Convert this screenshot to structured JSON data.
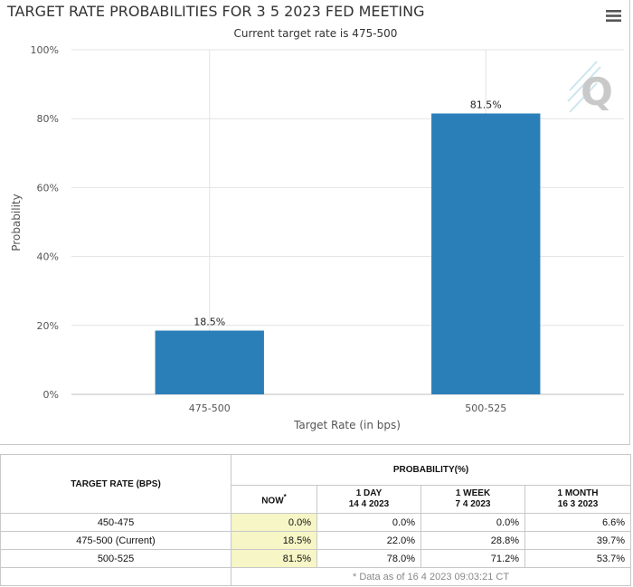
{
  "chart_data": {
    "type": "bar",
    "title": "TARGET RATE PROBABILITIES FOR 3 5 2023 FED MEETING",
    "subtitle": "Current target rate is 475-500",
    "categories": [
      "475-500",
      "500-525"
    ],
    "values": [
      18.5,
      81.5
    ],
    "data_labels": [
      "18.5%",
      "81.5%"
    ],
    "xlabel": "Target Rate (in bps)",
    "ylabel": "Probability",
    "ylim": [
      0,
      100
    ],
    "y_ticks": [
      0,
      20,
      40,
      60,
      80,
      100
    ],
    "y_tick_labels": [
      "0%",
      "20%",
      "40%",
      "60%",
      "80%",
      "100%"
    ],
    "bar_color": "#2b7fb8",
    "grid": true
  },
  "watermark": "Q",
  "table": {
    "rate_header": "TARGET RATE (BPS)",
    "prob_header": "PROBABILITY(%)",
    "columns": [
      {
        "label": "NOW",
        "sup": "*",
        "date": ""
      },
      {
        "label": "1 DAY",
        "date": "14 4 2023"
      },
      {
        "label": "1 WEEK",
        "date": "7 4 2023"
      },
      {
        "label": "1 MONTH",
        "date": "16 3 2023"
      }
    ],
    "rows": [
      {
        "rate": "450-475",
        "values": [
          "0.0%",
          "0.0%",
          "0.0%",
          "6.6%"
        ]
      },
      {
        "rate": "475-500 (Current)",
        "values": [
          "18.5%",
          "22.0%",
          "28.8%",
          "39.7%"
        ]
      },
      {
        "rate": "500-525",
        "values": [
          "81.5%",
          "78.0%",
          "71.2%",
          "53.7%"
        ]
      }
    ],
    "footnote": "* Data as of 16 4 2023 09:03:21 CT",
    "now_color": "#f6f6c6"
  }
}
